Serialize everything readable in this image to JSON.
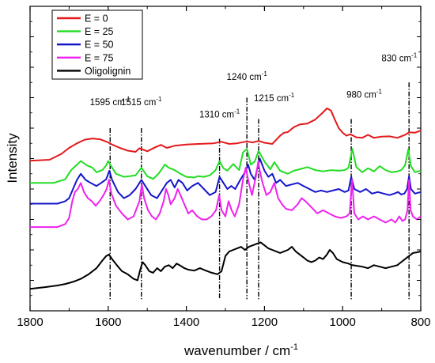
{
  "chart_data": {
    "type": "line",
    "xlabel": "wavenumber / cm",
    "xlabel_sup": "-1",
    "ylabel": "Intensity",
    "xlim": [
      1800,
      800
    ],
    "x_reversed": true,
    "xticks": [
      1800,
      1600,
      1400,
      1200,
      1000,
      800
    ],
    "ylim": [
      0,
      1
    ],
    "y_tick_labels": false,
    "grid": false,
    "legend_position": "top-left",
    "legend": [
      {
        "label": "E = 0",
        "color": "#e41a1c"
      },
      {
        "label": "E = 25",
        "color": "#22dd22"
      },
      {
        "label": "E = 50",
        "color": "#1515cc"
      },
      {
        "label": "E = 75",
        "color": "#ee22ee"
      },
      {
        "label": "Oligolignin",
        "color": "#000000"
      }
    ],
    "series": [
      {
        "name": "E = 0",
        "color": "#e41a1c",
        "x": [
          1800,
          1750,
          1720,
          1700,
          1680,
          1660,
          1640,
          1620,
          1600,
          1590,
          1570,
          1550,
          1530,
          1520,
          1510,
          1500,
          1480,
          1465,
          1450,
          1430,
          1400,
          1370,
          1330,
          1310,
          1290,
          1270,
          1250,
          1240,
          1230,
          1215,
          1200,
          1180,
          1160,
          1150,
          1140,
          1125,
          1110,
          1090,
          1070,
          1050,
          1040,
          1030,
          1020,
          1010,
          1000,
          990,
          980,
          965,
          950,
          935,
          920,
          900,
          880,
          860,
          840,
          830,
          815,
          800
        ],
        "y": [
          0.493,
          0.496,
          0.515,
          0.535,
          0.55,
          0.562,
          0.566,
          0.563,
          0.553,
          0.546,
          0.535,
          0.526,
          0.522,
          0.534,
          0.529,
          0.524,
          0.537,
          0.545,
          0.535,
          0.542,
          0.546,
          0.548,
          0.55,
          0.555,
          0.548,
          0.55,
          0.555,
          0.555,
          0.553,
          0.558,
          0.552,
          0.548,
          0.575,
          0.585,
          0.587,
          0.603,
          0.612,
          0.615,
          0.628,
          0.652,
          0.665,
          0.658,
          0.628,
          0.6,
          0.585,
          0.575,
          0.58,
          0.57,
          0.568,
          0.578,
          0.568,
          0.572,
          0.573,
          0.568,
          0.578,
          0.586,
          0.585,
          0.592
        ]
      },
      {
        "name": "E = 25",
        "color": "#22dd22",
        "x": [
          1800,
          1740,
          1710,
          1695,
          1685,
          1670,
          1655,
          1640,
          1630,
          1615,
          1605,
          1600,
          1595,
          1580,
          1560,
          1545,
          1530,
          1515,
          1500,
          1485,
          1470,
          1455,
          1445,
          1430,
          1415,
          1400,
          1380,
          1370,
          1355,
          1340,
          1325,
          1315,
          1305,
          1295,
          1280,
          1265,
          1255,
          1245,
          1235,
          1225,
          1215,
          1200,
          1185,
          1175,
          1160,
          1140,
          1125,
          1110,
          1090,
          1070,
          1050,
          1030,
          1010,
          995,
          985,
          975,
          965,
          950,
          935,
          920,
          905,
          890,
          875,
          860,
          850,
          840,
          832,
          825,
          815,
          800
        ],
        "y": [
          0.42,
          0.42,
          0.432,
          0.462,
          0.474,
          0.492,
          0.478,
          0.47,
          0.455,
          0.462,
          0.478,
          0.492,
          0.48,
          0.45,
          0.44,
          0.442,
          0.445,
          0.47,
          0.442,
          0.433,
          0.452,
          0.48,
          0.47,
          0.462,
          0.45,
          0.44,
          0.438,
          0.442,
          0.44,
          0.445,
          0.462,
          0.492,
          0.468,
          0.46,
          0.482,
          0.462,
          0.52,
          0.532,
          0.48,
          0.49,
          0.525,
          0.49,
          0.465,
          0.488,
          0.46,
          0.45,
          0.46,
          0.465,
          0.472,
          0.462,
          0.458,
          0.462,
          0.46,
          0.462,
          0.47,
          0.532,
          0.472,
          0.455,
          0.468,
          0.458,
          0.475,
          0.462,
          0.455,
          0.458,
          0.462,
          0.478,
          0.53,
          0.475,
          0.455,
          0.46
        ]
      },
      {
        "name": "E = 50",
        "color": "#1515cc",
        "x": [
          1800,
          1730,
          1710,
          1700,
          1690,
          1680,
          1670,
          1658,
          1645,
          1630,
          1618,
          1605,
          1597,
          1590,
          1575,
          1560,
          1545,
          1530,
          1515,
          1505,
          1490,
          1475,
          1460,
          1450,
          1440,
          1430,
          1420,
          1410,
          1398,
          1385,
          1370,
          1355,
          1340,
          1325,
          1315,
          1305,
          1295,
          1285,
          1275,
          1262,
          1250,
          1242,
          1235,
          1225,
          1218,
          1212,
          1200,
          1190,
          1180,
          1170,
          1160,
          1145,
          1130,
          1115,
          1100,
          1085,
          1070,
          1055,
          1040,
          1025,
          1010,
          995,
          985,
          978,
          970,
          955,
          940,
          925,
          910,
          895,
          880,
          868,
          858,
          850,
          842,
          835,
          830,
          825,
          815,
          800
        ],
        "y": [
          0.352,
          0.352,
          0.36,
          0.37,
          0.4,
          0.43,
          0.45,
          0.43,
          0.42,
          0.41,
          0.42,
          0.432,
          0.46,
          0.43,
          0.39,
          0.37,
          0.38,
          0.4,
          0.43,
          0.41,
          0.38,
          0.37,
          0.4,
          0.42,
          0.43,
          0.405,
          0.43,
          0.42,
          0.395,
          0.41,
          0.42,
          0.4,
          0.38,
          0.39,
          0.44,
          0.42,
          0.4,
          0.41,
          0.4,
          0.43,
          0.455,
          0.48,
          0.45,
          0.43,
          0.47,
          0.5,
          0.46,
          0.44,
          0.45,
          0.42,
          0.43,
          0.41,
          0.415,
          0.42,
          0.41,
          0.4,
          0.39,
          0.395,
          0.39,
          0.395,
          0.4,
          0.39,
          0.395,
          0.44,
          0.4,
          0.39,
          0.4,
          0.385,
          0.39,
          0.385,
          0.38,
          0.385,
          0.39,
          0.382,
          0.385,
          0.4,
          0.442,
          0.4,
          0.385,
          0.39
        ]
      },
      {
        "name": "E = 75",
        "color": "#ee22ee",
        "x": [
          1800,
          1730,
          1710,
          1700,
          1692,
          1685,
          1678,
          1670,
          1662,
          1652,
          1642,
          1632,
          1622,
          1612,
          1604,
          1598,
          1592,
          1580,
          1565,
          1550,
          1535,
          1520,
          1514,
          1508,
          1498,
          1488,
          1478,
          1468,
          1458,
          1452,
          1446,
          1440,
          1430,
          1422,
          1415,
          1405,
          1395,
          1385,
          1372,
          1360,
          1348,
          1336,
          1324,
          1316,
          1310,
          1300,
          1292,
          1284,
          1276,
          1265,
          1255,
          1248,
          1240,
          1232,
          1222,
          1216,
          1212,
          1205,
          1195,
          1185,
          1175,
          1165,
          1155,
          1145,
          1130,
          1115,
          1105,
          1095,
          1080,
          1065,
          1050,
          1035,
          1020,
          1005,
          990,
          982,
          976,
          970,
          960,
          948,
          935,
          920,
          905,
          890,
          875,
          865,
          855,
          847,
          840,
          834,
          830,
          826,
          820,
          810,
          800
        ],
        "y": [
          0.275,
          0.275,
          0.285,
          0.305,
          0.36,
          0.39,
          0.4,
          0.42,
          0.39,
          0.37,
          0.36,
          0.345,
          0.36,
          0.38,
          0.4,
          0.43,
          0.385,
          0.345,
          0.32,
          0.3,
          0.31,
          0.36,
          0.415,
          0.37,
          0.33,
          0.31,
          0.3,
          0.32,
          0.36,
          0.4,
          0.38,
          0.35,
          0.37,
          0.4,
          0.38,
          0.35,
          0.32,
          0.33,
          0.31,
          0.3,
          0.3,
          0.31,
          0.33,
          0.38,
          0.33,
          0.31,
          0.36,
          0.33,
          0.31,
          0.35,
          0.43,
          0.47,
          0.42,
          0.38,
          0.44,
          0.49,
          0.46,
          0.42,
          0.38,
          0.39,
          0.42,
          0.37,
          0.35,
          0.335,
          0.33,
          0.35,
          0.37,
          0.36,
          0.34,
          0.32,
          0.33,
          0.32,
          0.31,
          0.305,
          0.31,
          0.32,
          0.43,
          0.32,
          0.3,
          0.31,
          0.3,
          0.31,
          0.3,
          0.29,
          0.3,
          0.29,
          0.31,
          0.295,
          0.3,
          0.33,
          0.43,
          0.33,
          0.31,
          0.3,
          0.31
        ]
      },
      {
        "name": "Oligolignin",
        "color": "#000000",
        "x": [
          1800,
          1760,
          1730,
          1710,
          1690,
          1670,
          1650,
          1630,
          1615,
          1605,
          1598,
          1590,
          1578,
          1565,
          1550,
          1535,
          1525,
          1518,
          1512,
          1505,
          1495,
          1485,
          1475,
          1465,
          1455,
          1445,
          1435,
          1425,
          1415,
          1405,
          1395,
          1380,
          1365,
          1350,
          1335,
          1320,
          1310,
          1300,
          1290,
          1280,
          1270,
          1260,
          1250,
          1240,
          1230,
          1220,
          1210,
          1200,
          1190,
          1180,
          1170,
          1160,
          1150,
          1140,
          1130,
          1120,
          1110,
          1100,
          1090,
          1080,
          1070,
          1060,
          1050,
          1040,
          1033,
          1025,
          1015,
          1000,
          985,
          975,
          965,
          950,
          935,
          920,
          905,
          890,
          875,
          860,
          850,
          840,
          830,
          820,
          810,
          800
        ],
        "y": [
          0.072,
          0.078,
          0.083,
          0.088,
          0.095,
          0.105,
          0.12,
          0.14,
          0.165,
          0.18,
          0.185,
          0.17,
          0.15,
          0.13,
          0.12,
          0.105,
          0.1,
          0.135,
          0.16,
          0.15,
          0.13,
          0.125,
          0.14,
          0.13,
          0.145,
          0.15,
          0.14,
          0.155,
          0.148,
          0.14,
          0.135,
          0.132,
          0.14,
          0.132,
          0.125,
          0.12,
          0.13,
          0.18,
          0.195,
          0.2,
          0.205,
          0.21,
          0.2,
          0.21,
          0.215,
          0.22,
          0.225,
          0.215,
          0.205,
          0.2,
          0.195,
          0.19,
          0.195,
          0.2,
          0.21,
          0.195,
          0.185,
          0.175,
          0.165,
          0.16,
          0.165,
          0.175,
          0.17,
          0.185,
          0.2,
          0.19,
          0.17,
          0.16,
          0.155,
          0.15,
          0.148,
          0.145,
          0.14,
          0.15,
          0.145,
          0.14,
          0.145,
          0.15,
          0.16,
          0.17,
          0.18,
          0.19,
          0.192,
          0.195
        ]
      }
    ],
    "annotations": [
      {
        "label": "1595 cm",
        "sup": "-1",
        "x": 1595,
        "line_top": 0.6,
        "line_bottom": 0.038,
        "label_anchor": "middle",
        "label_y": 0.675
      },
      {
        "label": "1515 cm",
        "sup": "-1",
        "x": 1515,
        "line_top": 0.6,
        "line_bottom": 0.038,
        "label_anchor": "middle",
        "label_y": 0.675
      },
      {
        "label": "1310 cm",
        "sup": "-1",
        "x": 1315,
        "line_top": 0.565,
        "line_bottom": 0.038,
        "label_anchor": "middle",
        "label_y": 0.635
      },
      {
        "label": "1240 cm",
        "sup": "-1",
        "x": 1245,
        "line_top": 0.7,
        "line_bottom": 0.038,
        "label_anchor": "middle",
        "label_y": 0.758
      },
      {
        "label": "1215 cm",
        "sup": "-1",
        "x": 1215,
        "line_top": 0.63,
        "line_bottom": 0.038,
        "label_anchor": "start",
        "label_y": 0.688
      },
      {
        "label": "980 cm",
        "sup": "-1",
        "x": 978,
        "line_top": 0.63,
        "line_bottom": 0.038,
        "label_anchor": "start",
        "label_y": 0.7
      },
      {
        "label": "830 cm",
        "sup": "-1",
        "x": 830,
        "line_top": 0.75,
        "line_bottom": 0.038,
        "label_anchor": "end",
        "label_y": 0.82
      }
    ]
  }
}
